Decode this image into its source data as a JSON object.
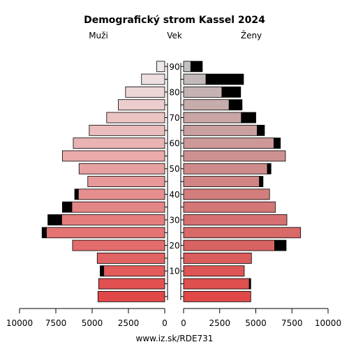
{
  "chart_data": {
    "type": "bar",
    "title": "Demografický strom Kassel 2024",
    "source": "www.iz.sk/RDE731",
    "left_label": "Muži",
    "center_label": "Vek",
    "right_label": "Ženy",
    "age_ticks": [
      "10",
      "20",
      "30",
      "40",
      "50",
      "60",
      "70",
      "80",
      "90"
    ],
    "x_ticks_left": [
      "10000",
      "7500",
      "5000",
      "2500",
      "0"
    ],
    "x_ticks_right": [
      "0",
      "2500",
      "5000",
      "7500",
      "10000"
    ],
    "xlim": [
      0,
      10000
    ],
    "age_groups": [
      "0-4",
      "5-9",
      "10-14",
      "15-19",
      "20-24",
      "25-29",
      "30-34",
      "35-39",
      "40-44",
      "45-49",
      "50-54",
      "55-59",
      "60-64",
      "65-69",
      "70-74",
      "75-79",
      "80-84",
      "85-89",
      "90+"
    ],
    "series": [
      {
        "name": "Muži",
        "base": [
          4600,
          4550,
          4200,
          4650,
          6350,
          8150,
          7100,
          6400,
          5950,
          5300,
          5900,
          7050,
          6300,
          5200,
          4000,
          3200,
          2700,
          1600,
          550
        ],
        "surplus": [
          0,
          0,
          250,
          0,
          0,
          300,
          950,
          650,
          250,
          0,
          0,
          0,
          0,
          0,
          0,
          0,
          0,
          0,
          0
        ]
      },
      {
        "name": "Ženy",
        "base": [
          4650,
          4550,
          4200,
          4700,
          6300,
          8100,
          7150,
          6350,
          5950,
          5250,
          5800,
          7050,
          6250,
          5100,
          4000,
          3150,
          2650,
          1550,
          500
        ],
        "surplus": [
          0,
          100,
          0,
          0,
          800,
          0,
          0,
          0,
          0,
          250,
          250,
          0,
          450,
          500,
          1000,
          900,
          1300,
          2600,
          800
        ]
      }
    ]
  }
}
